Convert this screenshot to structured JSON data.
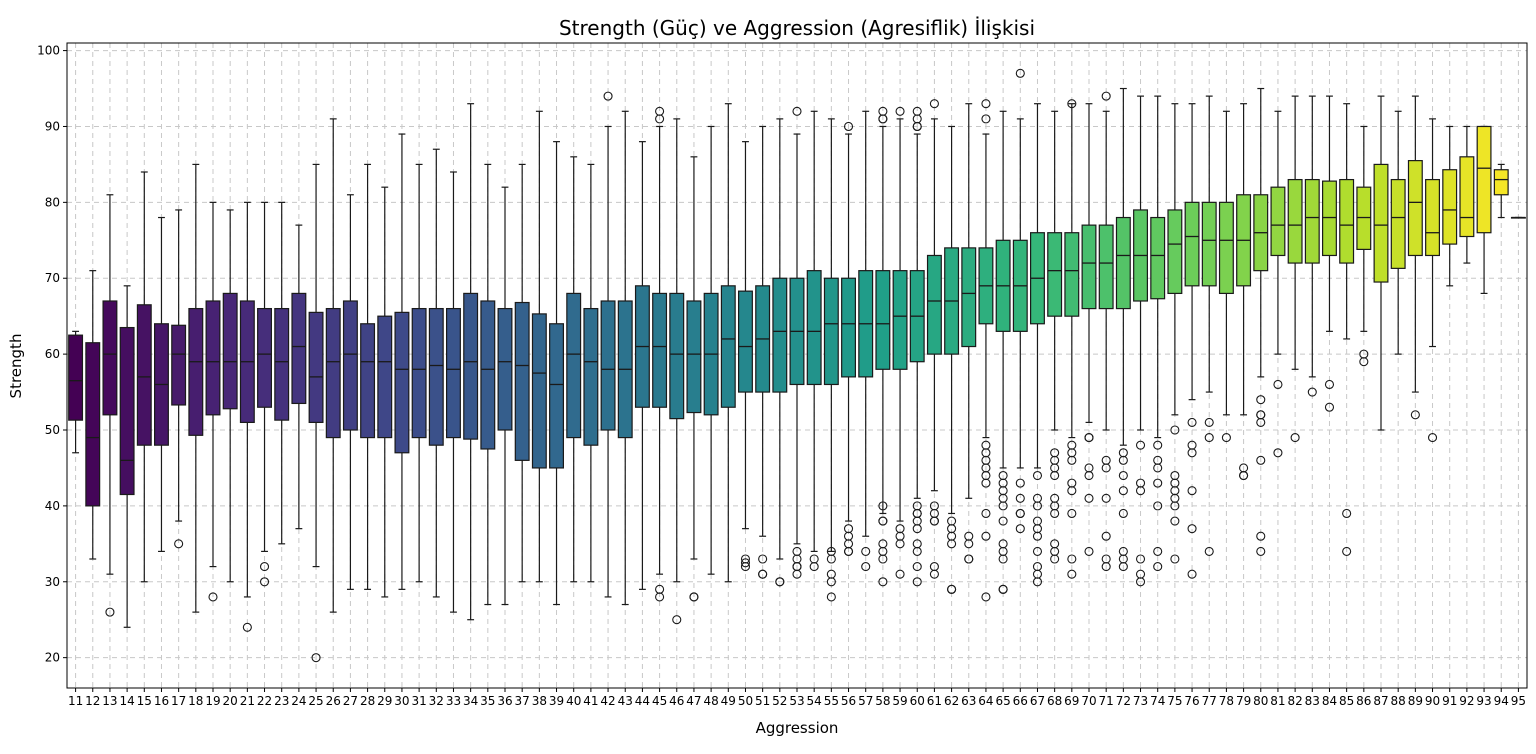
{
  "chart_data": {
    "type": "boxplot",
    "title": "Strength (Güç) ve Aggression (Agresiflik) İlişkisi",
    "xlabel": "Aggression",
    "ylabel": "Strength",
    "ylim": [
      16,
      101
    ],
    "yticks": [
      20,
      30,
      40,
      50,
      60,
      70,
      80,
      90,
      100
    ],
    "grid": true,
    "colormap": "viridis",
    "categories": [
      "11",
      "12",
      "13",
      "14",
      "15",
      "16",
      "17",
      "18",
      "19",
      "20",
      "21",
      "22",
      "23",
      "24",
      "25",
      "26",
      "27",
      "28",
      "29",
      "30",
      "31",
      "32",
      "33",
      "34",
      "35",
      "36",
      "37",
      "38",
      "39",
      "40",
      "41",
      "42",
      "43",
      "44",
      "45",
      "46",
      "47",
      "48",
      "49",
      "50",
      "51",
      "52",
      "53",
      "54",
      "55",
      "56",
      "57",
      "58",
      "59",
      "60",
      "61",
      "62",
      "63",
      "64",
      "65",
      "66",
      "67",
      "68",
      "69",
      "70",
      "71",
      "72",
      "73",
      "74",
      "75",
      "76",
      "77",
      "78",
      "79",
      "80",
      "81",
      "82",
      "83",
      "84",
      "85",
      "86",
      "87",
      "88",
      "89",
      "90",
      "91",
      "92",
      "93",
      "94",
      "95"
    ],
    "boxes": [
      {
        "whislo": 47,
        "q1": 51.3,
        "med": 56.5,
        "q3": 62.5,
        "whishi": 63,
        "fliers": []
      },
      {
        "whislo": 33,
        "q1": 40,
        "med": 49,
        "q3": 61.5,
        "whishi": 71,
        "fliers": []
      },
      {
        "whislo": 31,
        "q1": 52,
        "med": 60,
        "q3": 67,
        "whishi": 81,
        "fliers": [
          26
        ]
      },
      {
        "whislo": 24,
        "q1": 41.5,
        "med": 46,
        "q3": 63.5,
        "whishi": 69,
        "fliers": []
      },
      {
        "whislo": 30,
        "q1": 48,
        "med": 57,
        "q3": 66.5,
        "whishi": 84,
        "fliers": []
      },
      {
        "whislo": 34,
        "q1": 48,
        "med": 56,
        "q3": 64,
        "whishi": 78,
        "fliers": []
      },
      {
        "whislo": 38,
        "q1": 53.3,
        "med": 60,
        "q3": 63.8,
        "whishi": 79,
        "fliers": [
          35
        ]
      },
      {
        "whislo": 26,
        "q1": 49.3,
        "med": 59,
        "q3": 66,
        "whishi": 85,
        "fliers": []
      },
      {
        "whislo": 32,
        "q1": 52,
        "med": 59,
        "q3": 67,
        "whishi": 80,
        "fliers": [
          28
        ]
      },
      {
        "whislo": 30,
        "q1": 52.8,
        "med": 59,
        "q3": 68,
        "whishi": 79,
        "fliers": []
      },
      {
        "whislo": 28,
        "q1": 51,
        "med": 59,
        "q3": 67,
        "whishi": 80,
        "fliers": [
          24
        ]
      },
      {
        "whislo": 34,
        "q1": 53,
        "med": 60,
        "q3": 66,
        "whishi": 80,
        "fliers": [
          32,
          30
        ]
      },
      {
        "whislo": 35,
        "q1": 51.3,
        "med": 59,
        "q3": 66,
        "whishi": 80,
        "fliers": []
      },
      {
        "whislo": 37,
        "q1": 53.5,
        "med": 61,
        "q3": 68,
        "whishi": 77,
        "fliers": []
      },
      {
        "whislo": 32,
        "q1": 51,
        "med": 57,
        "q3": 65.5,
        "whishi": 85,
        "fliers": [
          20
        ]
      },
      {
        "whislo": 26,
        "q1": 49,
        "med": 59,
        "q3": 66,
        "whishi": 91,
        "fliers": []
      },
      {
        "whislo": 29,
        "q1": 50,
        "med": 60,
        "q3": 67,
        "whishi": 81,
        "fliers": []
      },
      {
        "whislo": 29,
        "q1": 49,
        "med": 59,
        "q3": 64,
        "whishi": 85,
        "fliers": []
      },
      {
        "whislo": 28,
        "q1": 49,
        "med": 59,
        "q3": 65,
        "whishi": 82,
        "fliers": []
      },
      {
        "whislo": 29,
        "q1": 47,
        "med": 58,
        "q3": 65.5,
        "whishi": 89,
        "fliers": []
      },
      {
        "whislo": 30,
        "q1": 49,
        "med": 58,
        "q3": 66,
        "whishi": 85,
        "fliers": []
      },
      {
        "whislo": 28,
        "q1": 48,
        "med": 58.5,
        "q3": 66,
        "whishi": 87,
        "fliers": []
      },
      {
        "whislo": 26,
        "q1": 49,
        "med": 58,
        "q3": 66,
        "whishi": 84,
        "fliers": []
      },
      {
        "whislo": 25,
        "q1": 48.8,
        "med": 59,
        "q3": 68,
        "whishi": 93,
        "fliers": []
      },
      {
        "whislo": 27,
        "q1": 47.5,
        "med": 58,
        "q3": 67,
        "whishi": 85,
        "fliers": []
      },
      {
        "whislo": 27,
        "q1": 50,
        "med": 59,
        "q3": 66,
        "whishi": 82,
        "fliers": []
      },
      {
        "whislo": 30,
        "q1": 46,
        "med": 58.5,
        "q3": 66.8,
        "whishi": 85,
        "fliers": []
      },
      {
        "whislo": 30,
        "q1": 45,
        "med": 57.5,
        "q3": 65.3,
        "whishi": 92,
        "fliers": []
      },
      {
        "whislo": 27,
        "q1": 45,
        "med": 56,
        "q3": 64,
        "whishi": 88,
        "fliers": []
      },
      {
        "whislo": 30,
        "q1": 49,
        "med": 60,
        "q3": 68,
        "whishi": 86,
        "fliers": []
      },
      {
        "whislo": 30,
        "q1": 48,
        "med": 59,
        "q3": 66,
        "whishi": 85,
        "fliers": []
      },
      {
        "whislo": 28,
        "q1": 50,
        "med": 58,
        "q3": 67,
        "whishi": 90,
        "fliers": [
          94
        ]
      },
      {
        "whislo": 27,
        "q1": 49,
        "med": 58,
        "q3": 67,
        "whishi": 92,
        "fliers": []
      },
      {
        "whislo": 29,
        "q1": 53,
        "med": 61,
        "q3": 69,
        "whishi": 88,
        "fliers": []
      },
      {
        "whislo": 31,
        "q1": 53,
        "med": 61,
        "q3": 68,
        "whishi": 90,
        "fliers": [
          92,
          91,
          29,
          28
        ]
      },
      {
        "whislo": 30,
        "q1": 51.5,
        "med": 60,
        "q3": 68,
        "whishi": 91,
        "fliers": [
          25
        ]
      },
      {
        "whislo": 33,
        "q1": 52.3,
        "med": 60,
        "q3": 67,
        "whishi": 86,
        "fliers": [
          28,
          28
        ]
      },
      {
        "whislo": 31,
        "q1": 52,
        "med": 60,
        "q3": 68,
        "whishi": 90,
        "fliers": []
      },
      {
        "whislo": 30,
        "q1": 53,
        "med": 62,
        "q3": 69,
        "whishi": 93,
        "fliers": []
      },
      {
        "whislo": 37,
        "q1": 55,
        "med": 61,
        "q3": 68.3,
        "whishi": 88,
        "fliers": [
          33,
          32.5,
          32
        ]
      },
      {
        "whislo": 36,
        "q1": 55,
        "med": 62,
        "q3": 69,
        "whishi": 90,
        "fliers": [
          33,
          31,
          31
        ]
      },
      {
        "whislo": 33,
        "q1": 55,
        "med": 63,
        "q3": 70,
        "whishi": 91,
        "fliers": [
          30,
          30
        ]
      },
      {
        "whislo": 35,
        "q1": 56,
        "med": 63,
        "q3": 70,
        "whishi": 89,
        "fliers": [
          92,
          34,
          33,
          32,
          32,
          31
        ]
      },
      {
        "whislo": 34,
        "q1": 56,
        "med": 63,
        "q3": 71,
        "whishi": 92,
        "fliers": [
          33,
          32
        ]
      },
      {
        "whislo": 34,
        "q1": 56,
        "med": 64,
        "q3": 70,
        "whishi": 91,
        "fliers": [
          34,
          33,
          31,
          30,
          28
        ]
      },
      {
        "whislo": 38,
        "q1": 57,
        "med": 64,
        "q3": 70,
        "whishi": 89,
        "fliers": [
          90,
          37,
          36,
          35,
          34,
          34
        ]
      },
      {
        "whislo": 36,
        "q1": 57,
        "med": 64,
        "q3": 71,
        "whishi": 92,
        "fliers": [
          34,
          32
        ]
      },
      {
        "whislo": 39,
        "q1": 58,
        "med": 64,
        "q3": 71,
        "whishi": 90,
        "fliers": [
          92,
          91,
          91,
          40,
          38,
          38,
          35,
          34,
          33,
          30
        ]
      },
      {
        "whislo": 38,
        "q1": 58,
        "med": 65,
        "q3": 71,
        "whishi": 91,
        "fliers": [
          92,
          37,
          36,
          35,
          31
        ]
      },
      {
        "whislo": 41,
        "q1": 59,
        "med": 65,
        "q3": 71,
        "whishi": 89,
        "fliers": [
          92,
          91,
          90,
          90,
          40,
          39,
          39,
          38,
          37,
          35,
          34,
          32,
          30
        ]
      },
      {
        "whislo": 42,
        "q1": 60,
        "med": 67,
        "q3": 73,
        "whishi": 91,
        "fliers": [
          93,
          40,
          39,
          38,
          38,
          32,
          31
        ]
      },
      {
        "whislo": 39,
        "q1": 60,
        "med": 67,
        "q3": 74,
        "whishi": 90,
        "fliers": [
          38,
          37,
          36,
          35,
          29,
          29
        ]
      },
      {
        "whislo": 41,
        "q1": 61,
        "med": 68,
        "q3": 74,
        "whishi": 93,
        "fliers": [
          36,
          35,
          33,
          33
        ]
      },
      {
        "whislo": 49,
        "q1": 64,
        "med": 69,
        "q3": 74,
        "whishi": 89,
        "fliers": [
          93,
          91,
          48,
          47,
          46,
          45,
          44,
          43,
          39,
          36,
          28
        ]
      },
      {
        "whislo": 45,
        "q1": 63,
        "med": 69,
        "q3": 75,
        "whishi": 92,
        "fliers": [
          44,
          43,
          42,
          41,
          40,
          38,
          35,
          34,
          33,
          29,
          29
        ]
      },
      {
        "whislo": 45,
        "q1": 63,
        "med": 69,
        "q3": 75,
        "whishi": 91,
        "fliers": [
          97,
          43,
          41,
          39,
          39,
          37
        ]
      },
      {
        "whislo": 45,
        "q1": 64,
        "med": 70,
        "q3": 76,
        "whishi": 93,
        "fliers": [
          44,
          41,
          40,
          38,
          37,
          36,
          34,
          32,
          31,
          30
        ]
      },
      {
        "whislo": 50,
        "q1": 65,
        "med": 71,
        "q3": 76,
        "whishi": 92,
        "fliers": [
          47,
          46,
          45,
          44,
          41,
          40,
          39,
          35,
          34,
          33
        ]
      },
      {
        "whislo": 49,
        "q1": 65,
        "med": 71,
        "q3": 76,
        "whishi": 93,
        "fliers": [
          93,
          48,
          47,
          46,
          43,
          42,
          39,
          33,
          31
        ]
      },
      {
        "whislo": 51,
        "q1": 66,
        "med": 72,
        "q3": 77,
        "whishi": 93,
        "fliers": [
          49,
          49,
          45,
          44,
          41,
          34
        ]
      },
      {
        "whislo": 50,
        "q1": 66,
        "med": 72,
        "q3": 77,
        "whishi": 92,
        "fliers": [
          94,
          46,
          45,
          41,
          36,
          33,
          32
        ]
      },
      {
        "whislo": 48,
        "q1": 66,
        "med": 73,
        "q3": 78,
        "whishi": 95,
        "fliers": [
          47,
          46,
          44,
          42,
          39,
          34,
          33,
          32
        ]
      },
      {
        "whislo": 50,
        "q1": 67,
        "med": 73,
        "q3": 79,
        "whishi": 94,
        "fliers": [
          48,
          43,
          42,
          33,
          31,
          30
        ]
      },
      {
        "whislo": 49,
        "q1": 67.3,
        "med": 73,
        "q3": 78,
        "whishi": 94,
        "fliers": [
          48,
          46,
          45,
          43,
          40,
          34,
          32
        ]
      },
      {
        "whislo": 52,
        "q1": 68,
        "med": 74.5,
        "q3": 79,
        "whishi": 93,
        "fliers": [
          50,
          44,
          43,
          42,
          41,
          40,
          38,
          33
        ]
      },
      {
        "whislo": 54,
        "q1": 69,
        "med": 75.5,
        "q3": 80,
        "whishi": 93,
        "fliers": [
          51,
          48,
          47,
          42,
          37,
          31
        ]
      },
      {
        "whislo": 55,
        "q1": 69,
        "med": 75,
        "q3": 80,
        "whishi": 94,
        "fliers": [
          51,
          49,
          34
        ]
      },
      {
        "whislo": 52,
        "q1": 68,
        "med": 75,
        "q3": 80,
        "whishi": 92,
        "fliers": [
          49
        ]
      },
      {
        "whislo": 52,
        "q1": 69,
        "med": 75,
        "q3": 81,
        "whishi": 93,
        "fliers": [
          45,
          44,
          44
        ]
      },
      {
        "whislo": 57,
        "q1": 71,
        "med": 76,
        "q3": 81,
        "whishi": 95,
        "fliers": [
          54,
          52,
          51,
          52,
          46,
          36,
          34
        ]
      },
      {
        "whislo": 60,
        "q1": 73,
        "med": 77,
        "q3": 82,
        "whishi": 92,
        "fliers": [
          56,
          47
        ]
      },
      {
        "whislo": 58,
        "q1": 72,
        "med": 77,
        "q3": 83,
        "whishi": 94,
        "fliers": [
          49
        ]
      },
      {
        "whislo": 57,
        "q1": 72,
        "med": 78,
        "q3": 83,
        "whishi": 94,
        "fliers": [
          55
        ]
      },
      {
        "whislo": 63,
        "q1": 73,
        "med": 78,
        "q3": 82.8,
        "whishi": 94,
        "fliers": [
          56,
          53
        ]
      },
      {
        "whislo": 62,
        "q1": 72,
        "med": 77,
        "q3": 83,
        "whishi": 93,
        "fliers": [
          39,
          34
        ]
      },
      {
        "whislo": 63,
        "q1": 73.8,
        "med": 78,
        "q3": 82,
        "whishi": 90,
        "fliers": [
          60,
          59
        ]
      },
      {
        "whislo": 50,
        "q1": 69.5,
        "med": 77,
        "q3": 85,
        "whishi": 94,
        "fliers": []
      },
      {
        "whislo": 60,
        "q1": 71.3,
        "med": 78,
        "q3": 83,
        "whishi": 92,
        "fliers": []
      },
      {
        "whislo": 55,
        "q1": 73,
        "med": 80,
        "q3": 85.5,
        "whishi": 94,
        "fliers": [
          52
        ]
      },
      {
        "whislo": 61,
        "q1": 73,
        "med": 76,
        "q3": 83,
        "whishi": 91,
        "fliers": [
          49
        ]
      },
      {
        "whislo": 69,
        "q1": 74.5,
        "med": 79,
        "q3": 84.3,
        "whishi": 90,
        "fliers": []
      },
      {
        "whislo": 72,
        "q1": 75.5,
        "med": 78,
        "q3": 86,
        "whishi": 90,
        "fliers": []
      },
      {
        "whislo": 68,
        "q1": 76,
        "med": 84.5,
        "q3": 90,
        "whishi": 90,
        "fliers": []
      },
      {
        "whislo": 78,
        "q1": 81,
        "med": 83,
        "q3": 84.3,
        "whishi": 85,
        "fliers": []
      },
      {
        "whislo": 78,
        "q1": 78,
        "med": 78,
        "q3": 78,
        "whishi": 78,
        "fliers": []
      }
    ]
  }
}
